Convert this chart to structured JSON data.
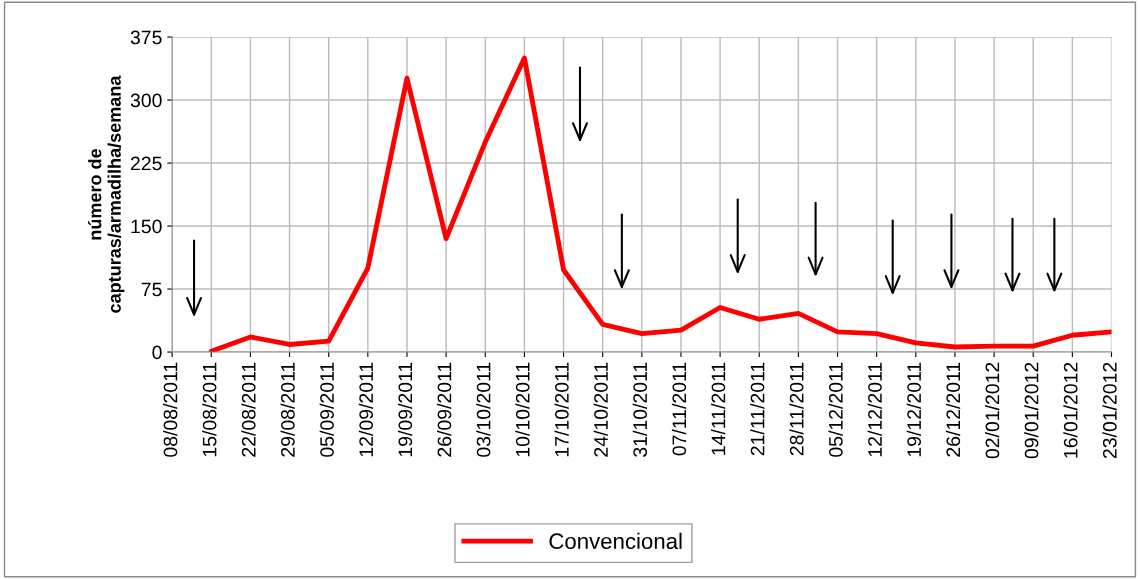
{
  "chart_data": {
    "type": "line",
    "ylabel": "número de\ncapturas/armadilha/semana",
    "categories": [
      "08/08/2011",
      "15/08/2011",
      "22/08/2011",
      "29/08/2011",
      "05/09/2011",
      "12/09/2011",
      "19/09/2011",
      "26/09/2011",
      "03/10/2011",
      "10/10/2011",
      "17/10/2011",
      "24/10/2011",
      "31/10/2011",
      "07/11/2011",
      "14/11/2011",
      "21/11/2011",
      "28/11/2011",
      "05/12/2011",
      "12/12/2011",
      "19/12/2011",
      "26/12/2011",
      "02/01/2012",
      "09/01/2012",
      "16/01/2012",
      "23/01/2012"
    ],
    "series": [
      {
        "name": "Convencional",
        "color": "#ff0000",
        "values": [
          null,
          1,
          18,
          9,
          13,
          100,
          326,
          135,
          250,
          350,
          98,
          33,
          22,
          26,
          53,
          39,
          46,
          24,
          22,
          11,
          6,
          7,
          7,
          20,
          24
        ]
      }
    ],
    "ylim": [
      0,
      375
    ],
    "yticks": [
      0,
      75,
      150,
      225,
      300,
      375
    ],
    "grid": true,
    "legend": "bottom",
    "marker": "none",
    "line_style": "solid"
  }
}
